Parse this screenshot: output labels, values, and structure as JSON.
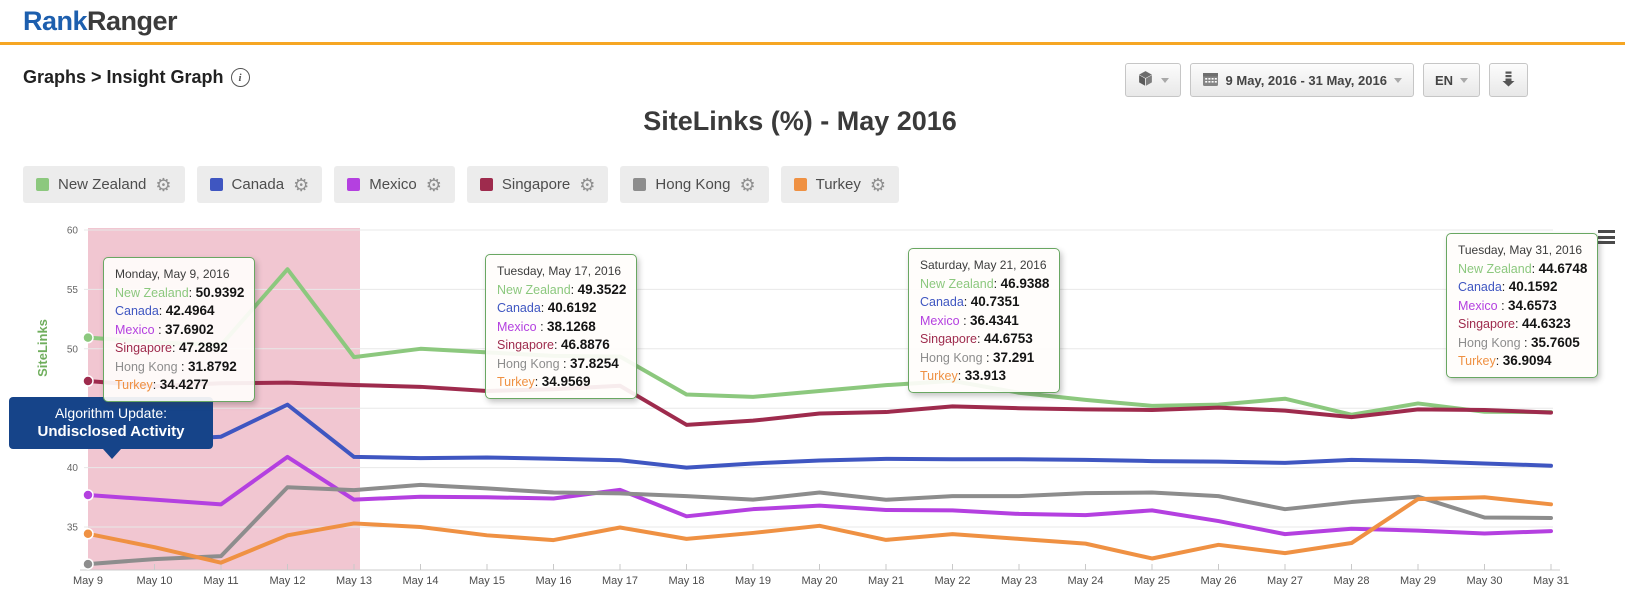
{
  "header": {
    "logo_primary": "Rank",
    "logo_secondary": "Ranger"
  },
  "toolbar": {
    "breadcrumb": "Graphs > Insight Graph",
    "info_icon_glyph": "i",
    "date_range": "9 May, 2016 - 31 May, 2016",
    "language": "EN",
    "icons": [
      "package-cube-icon",
      "calendar-icon",
      "download-icon"
    ]
  },
  "chart": {
    "title": "SiteLinks (%) - May 2016",
    "menu_icon": "hamburger-icon"
  },
  "annotation": {
    "line1": "Algorithm Update:",
    "line2": "Undisclosed Activity",
    "color": "#164489"
  },
  "tooltips": [
    {
      "date": "Monday, May 9, 2016",
      "rows": [
        [
          "New Zealand",
          "50.9392"
        ],
        [
          "Canada",
          "42.4964"
        ],
        [
          "Mexico ",
          "37.6902"
        ],
        [
          "Singapore",
          "47.2892"
        ],
        [
          "Hong Kong ",
          "31.8792"
        ],
        [
          "Turkey",
          "34.4277"
        ]
      ]
    },
    {
      "date": "Tuesday, May 17, 2016",
      "rows": [
        [
          "New Zealand",
          "49.3522"
        ],
        [
          "Canada",
          "40.6192"
        ],
        [
          "Mexico ",
          "38.1268"
        ],
        [
          "Singapore",
          "46.8876"
        ],
        [
          "Hong Kong ",
          "37.8254"
        ],
        [
          "Turkey",
          "34.9569"
        ]
      ]
    },
    {
      "date": "Saturday, May 21, 2016",
      "rows": [
        [
          "New Zealand",
          "46.9388"
        ],
        [
          "Canada",
          "40.7351"
        ],
        [
          "Mexico ",
          "36.4341"
        ],
        [
          "Singapore",
          "44.6753"
        ],
        [
          "Hong Kong ",
          "37.291"
        ],
        [
          "Turkey",
          "33.913"
        ]
      ]
    },
    {
      "date": "Tuesday, May 31, 2016",
      "rows": [
        [
          "New Zealand",
          "44.6748"
        ],
        [
          "Canada",
          "40.1592"
        ],
        [
          "Mexico ",
          "34.6573"
        ],
        [
          "Singapore",
          "44.6323"
        ],
        [
          "Hong Kong ",
          "35.7605"
        ],
        [
          "Turkey",
          "36.9094"
        ]
      ]
    }
  ],
  "chart_data": {
    "type": "line",
    "title": "SiteLinks (%) - May 2016",
    "ylabel": "SiteLinks",
    "ylabel_color": "#6fae5c",
    "x": [
      "May 9",
      "May 10",
      "May 11",
      "May 12",
      "May 13",
      "May 14",
      "May 15",
      "May 16",
      "May 17",
      "May 18",
      "May 19",
      "May 20",
      "May 21",
      "May 22",
      "May 23",
      "May 24",
      "May 25",
      "May 26",
      "May 27",
      "May 28",
      "May 29",
      "May 30",
      "May 31"
    ],
    "yticks": [
      60,
      55,
      50,
      45,
      40,
      35
    ],
    "ylim": [
      31.5,
      60
    ],
    "grid": true,
    "legend_position": "top",
    "highlight_region": {
      "from": "May 9",
      "to": "May 13",
      "color": "rgba(221,118,145,0.42)"
    },
    "series": [
      {
        "name": "New Zealand",
        "color": "#8cc87e",
        "values": [
          50.9392,
          50.55,
          50.3,
          56.7,
          49.3,
          50.0,
          49.7,
          49.4,
          49.3522,
          46.15,
          45.95,
          46.45,
          46.9388,
          47.3,
          46.3,
          45.7,
          45.2,
          45.3,
          45.8,
          44.45,
          45.4,
          44.7,
          44.6748
        ]
      },
      {
        "name": "Canada",
        "color": "#3f56c1",
        "values": [
          42.4964,
          42.3,
          42.6,
          45.3,
          40.9,
          40.8,
          40.85,
          40.75,
          40.6192,
          40.0,
          40.35,
          40.6,
          40.7351,
          40.7,
          40.7,
          40.65,
          40.55,
          40.5,
          40.4,
          40.65,
          40.55,
          40.35,
          40.1592
        ]
      },
      {
        "name": "Mexico",
        "color": "#b440e0",
        "values": [
          37.6902,
          37.3,
          36.9,
          40.9,
          37.3,
          37.55,
          37.5,
          37.4,
          38.1268,
          35.9,
          36.5,
          36.8,
          36.4341,
          36.4,
          36.1,
          36.0,
          36.4,
          35.5,
          34.4,
          34.85,
          34.7,
          34.45,
          34.6573
        ]
      },
      {
        "name": "Singapore",
        "color": "#9e2b4d",
        "values": [
          47.2892,
          46.85,
          47.1,
          47.15,
          46.95,
          46.8,
          46.45,
          46.6,
          46.8876,
          43.6,
          43.95,
          44.55,
          44.6753,
          45.15,
          45.0,
          44.9,
          44.85,
          45.05,
          44.8,
          44.25,
          44.9,
          44.85,
          44.6323
        ]
      },
      {
        "name": "Hong Kong",
        "color": "#8d8d8d",
        "values": [
          31.8792,
          32.3,
          32.55,
          38.35,
          38.1,
          38.55,
          38.25,
          37.9,
          37.8254,
          37.6,
          37.3,
          37.9,
          37.291,
          37.6,
          37.6,
          37.85,
          37.9,
          37.6,
          36.5,
          37.1,
          37.55,
          35.8,
          35.7605
        ]
      },
      {
        "name": "Turkey",
        "color": "#ef9143",
        "values": [
          34.4277,
          33.3,
          32.0,
          34.3,
          35.3,
          35.0,
          34.3,
          33.9,
          34.9569,
          34.0,
          34.5,
          35.1,
          33.913,
          34.4,
          34.0,
          33.6,
          32.35,
          33.5,
          32.8,
          33.65,
          37.35,
          37.5,
          36.9094
        ]
      }
    ]
  }
}
